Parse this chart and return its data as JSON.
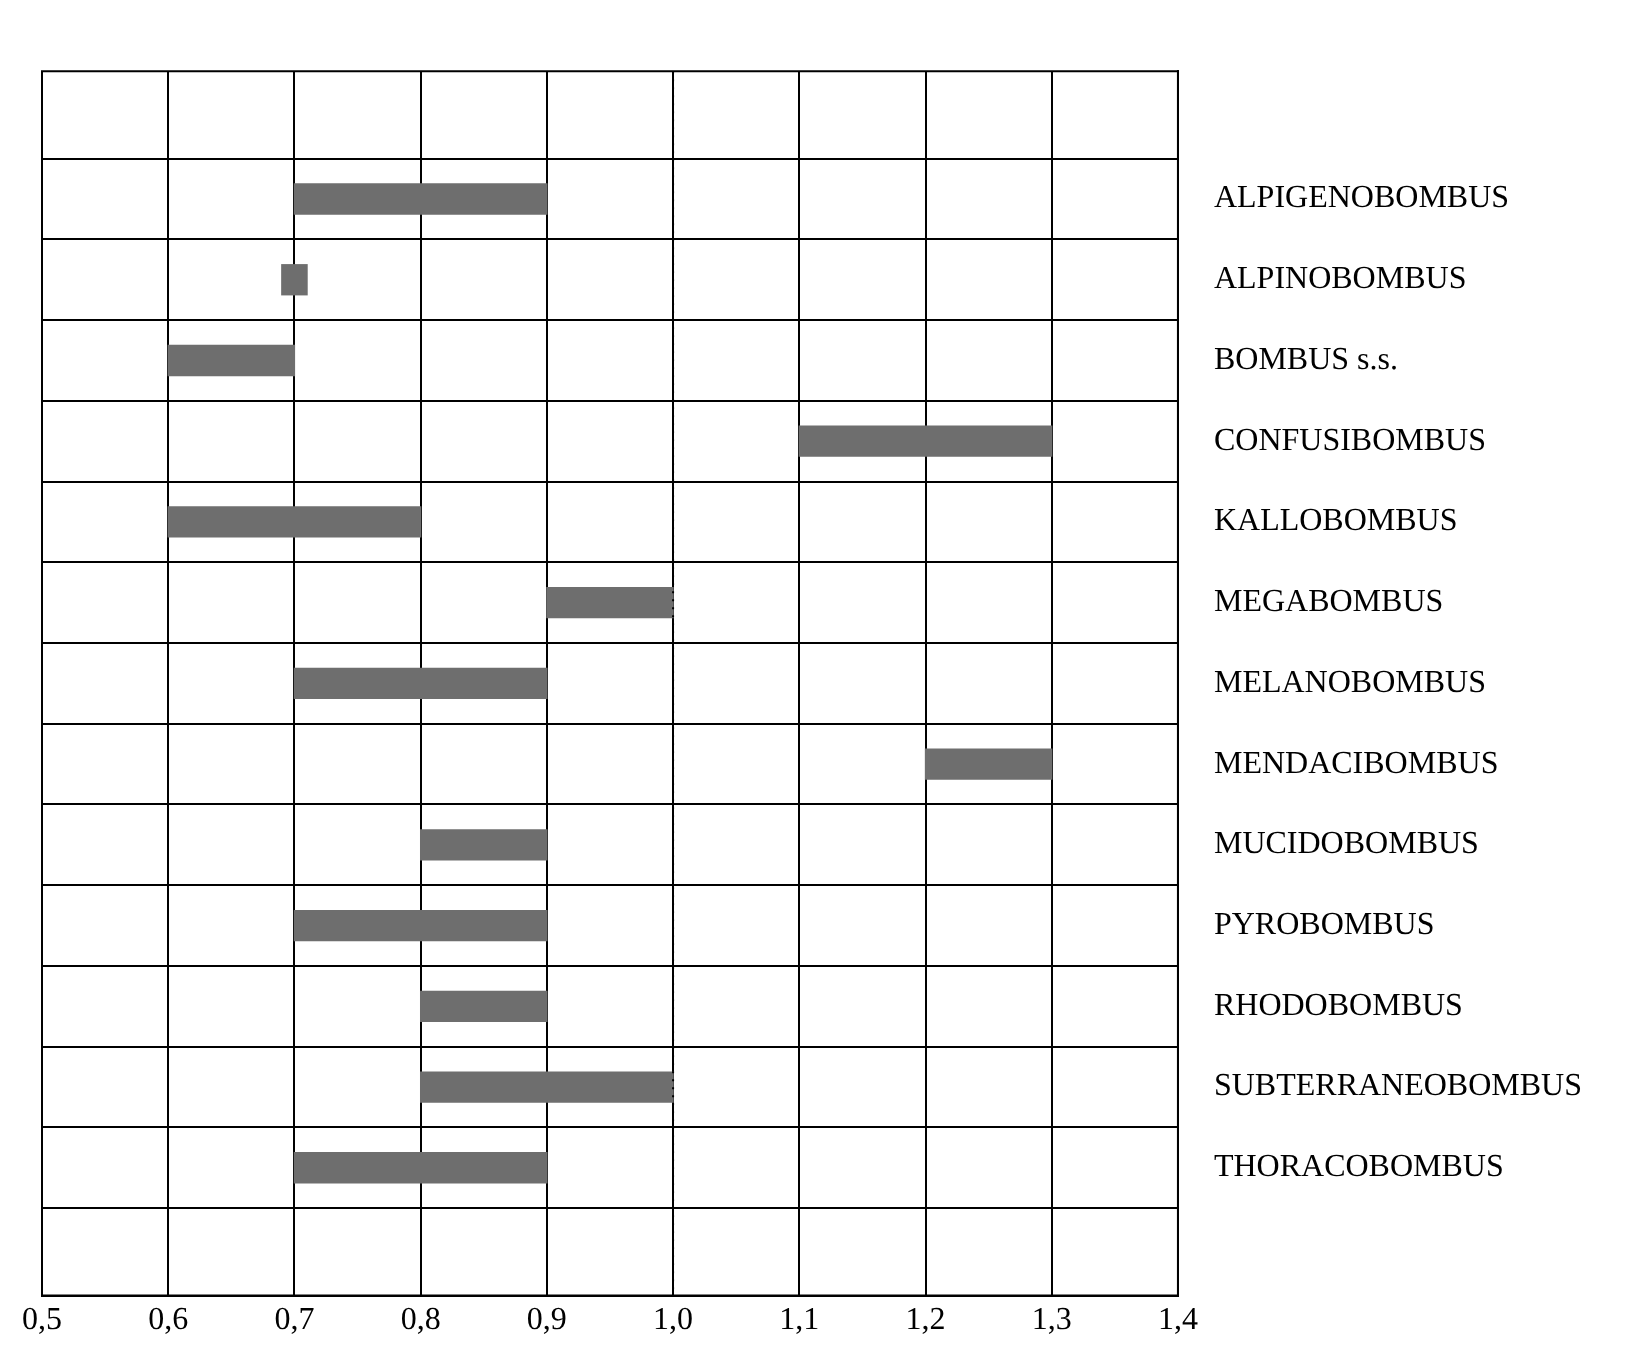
{
  "chart_data": {
    "type": "bar",
    "orientation": "horizontal",
    "categories": [
      "ALPIGENOBOMBUS",
      "ALPINOBOMBUS",
      "BOMBUS s.s.",
      "CONFUSIBOMBUS",
      "KALLOBOMBUS",
      "MEGABOMBUS",
      "MELANOBOMBUS",
      "MENDACIBOMBUS",
      "MUCIDOBOMBUS",
      "PYROBOMBUS",
      "RHODOBOMBUS",
      "SUBTERRANEOBOMBUS",
      "THORACOBOMBUS"
    ],
    "base": [
      0.7,
      0.69,
      0.6,
      1.1,
      0.6,
      0.9,
      0.7,
      1.2,
      0.8,
      0.7,
      0.8,
      0.8,
      0.7
    ],
    "values": [
      0.2,
      0.02,
      0.1,
      0.2,
      0.2,
      0.1,
      0.2,
      0.1,
      0.1,
      0.2,
      0.1,
      0.2,
      0.2
    ],
    "color": "#6e6e6e",
    "xlim": [
      0.5,
      1.4
    ],
    "xticks": [
      {
        "value": 0.5,
        "label": "0,5"
      },
      {
        "value": 0.6,
        "label": "0,6"
      },
      {
        "value": 0.7,
        "label": "0,7"
      },
      {
        "value": 0.8,
        "label": "0,8"
      },
      {
        "value": 0.9,
        "label": "0,9"
      },
      {
        "value": 1.0,
        "label": "1,0"
      },
      {
        "value": 1.1,
        "label": "1,1"
      },
      {
        "value": 1.2,
        "label": "1,2"
      },
      {
        "value": 1.3,
        "label": "1,3"
      },
      {
        "value": 1.4,
        "label": "1,4"
      }
    ],
    "ref_lines": [
      {
        "axis": "x",
        "value": 1.0,
        "line_style": "dotted",
        "color": "#000000"
      }
    ],
    "grid": true,
    "legend": false
  }
}
